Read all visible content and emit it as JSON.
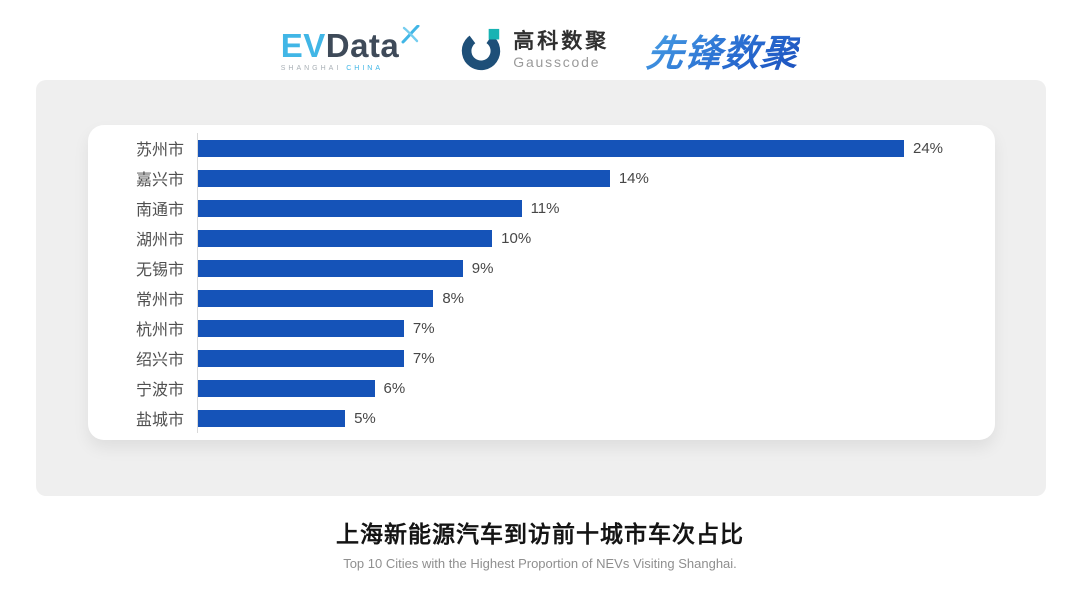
{
  "header": {
    "evdata": {
      "ev": "EV",
      "data": "Data",
      "sub_left": "SHANGHAI",
      "sub_right": "CHINA"
    },
    "gausscode": {
      "cn": "高科数聚",
      "en": "Gausscode"
    },
    "xianfeng": {
      "text": "先锋数聚"
    }
  },
  "chart_data": {
    "type": "bar",
    "orientation": "horizontal",
    "title": "上海新能源汽车到访前十城市车次占比",
    "subtitle": "Top 10 Cities with the Highest Proportion of NEVs Visiting Shanghai.",
    "categories": [
      "苏州市",
      "嘉兴市",
      "南通市",
      "湖州市",
      "无锡市",
      "常州市",
      "杭州市",
      "绍兴市",
      "宁波市",
      "盐城市"
    ],
    "values": [
      24,
      14,
      11,
      10,
      9,
      8,
      7,
      7,
      6,
      5
    ],
    "value_labels": [
      "24%",
      "14%",
      "11%",
      "10%",
      "9%",
      "8%",
      "7%",
      "7%",
      "6%",
      "5%"
    ],
    "unit": "%",
    "xlim": [
      0,
      25
    ],
    "grid": false,
    "legend": false,
    "bar_color": "#1553b8"
  },
  "footer": {
    "title": "上海新能源汽车到访前十城市车次占比",
    "subtitle": "Top 10 Cities with the Highest Proportion of  NEVs Visiting Shanghai."
  },
  "colors": {
    "bar": "#1553b8",
    "panel_bg": "#efefef",
    "card_bg": "#ffffff",
    "axis_line": "#d9d9d9",
    "label_text": "#4f4f4f",
    "evdata_blue": "#41b6e6",
    "evdata_dark": "#3e4a59",
    "gausscode_navy": "#1e4f78",
    "gausscode_teal": "#17b3b3",
    "xianfeng_blue": "#2a6fd2"
  }
}
